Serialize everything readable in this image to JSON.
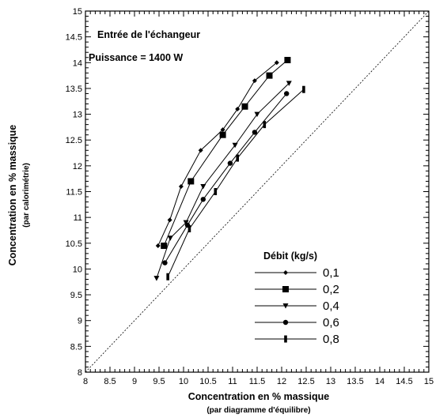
{
  "chart_data": {
    "type": "line",
    "title": "",
    "xlabel": "Concentration en % massique",
    "xlabel_sub": "(par diagramme d'équilibre)",
    "ylabel": "Concentration en % massique",
    "ylabel_sub": "(par calorimétrie)",
    "xlim": [
      8,
      15
    ],
    "ylim": [
      8,
      15
    ],
    "x_ticks": [
      "8",
      "8.5",
      "9",
      "9.5",
      "10",
      "10.5",
      "11",
      "11.5",
      "12",
      "12.5",
      "13",
      "13.5",
      "14",
      "14.5",
      "15"
    ],
    "y_ticks": [
      "8",
      "8.5",
      "9",
      "9.5",
      "10",
      "10.5",
      "11",
      "11.5",
      "12",
      "12.5",
      "13",
      "13.5",
      "14",
      "14.5",
      "15"
    ],
    "grid": false,
    "annotations": [
      "Entrée de l'échangeur",
      "Puissance = 1400 W"
    ],
    "legend_title": "Débit (kg/s)",
    "legend_position": "bottom-right",
    "reference_line": {
      "x": [
        8,
        15
      ],
      "y": [
        8,
        15
      ],
      "style": "dotted"
    },
    "series": [
      {
        "name": "0,1",
        "marker": "diamond",
        "x": [
          9.48,
          9.72,
          9.95,
          10.35,
          10.8,
          11.1,
          11.45,
          11.9
        ],
        "y": [
          10.45,
          10.95,
          11.6,
          12.3,
          12.7,
          13.1,
          13.65,
          14.0
        ]
      },
      {
        "name": "0,2",
        "marker": "square",
        "x": [
          9.6,
          10.15,
          10.8,
          11.25,
          11.75,
          12.12
        ],
        "y": [
          10.45,
          11.7,
          12.6,
          13.15,
          13.75,
          14.05
        ]
      },
      {
        "name": "0,4",
        "marker": "triangle-down",
        "x": [
          9.45,
          9.73,
          10.05,
          10.4,
          11.05,
          11.5,
          12.15
        ],
        "y": [
          9.82,
          10.6,
          10.9,
          11.6,
          12.4,
          13.0,
          13.6
        ]
      },
      {
        "name": "0,6",
        "marker": "circle",
        "x": [
          9.62,
          10.08,
          10.4,
          10.95,
          11.45,
          12.1
        ],
        "y": [
          10.12,
          10.85,
          11.35,
          12.05,
          12.65,
          13.4
        ]
      },
      {
        "name": "0,8",
        "marker": "bar",
        "x": [
          9.68,
          10.12,
          10.65,
          11.1,
          11.65,
          12.45
        ],
        "y": [
          9.85,
          10.78,
          11.5,
          12.15,
          12.8,
          13.48
        ]
      }
    ]
  }
}
